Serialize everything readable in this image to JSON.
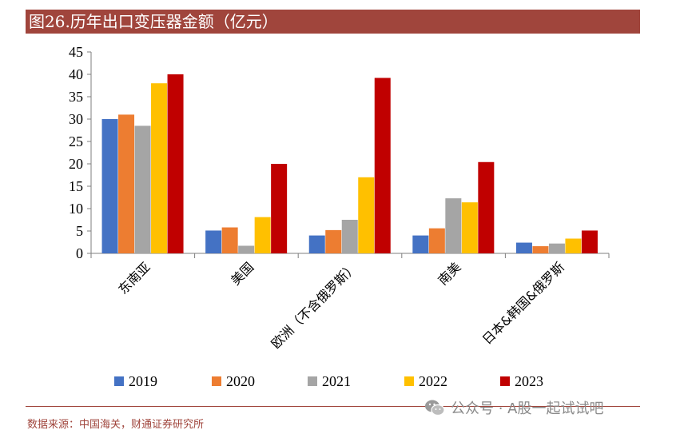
{
  "title": "图26.历年出口变压器金额（亿元）",
  "source": "数据来源：中国海关，财通证券研究所",
  "watermark": "公众号 · A股一起试试吧",
  "chart_data": {
    "type": "bar",
    "categories": [
      "东南亚",
      "美国",
      "欧洲（不含俄罗斯）",
      "南美",
      "日本&韩国&俄罗斯"
    ],
    "series": [
      {
        "name": "2019",
        "color": "#4472c4",
        "values": [
          30.0,
          5.1,
          4.0,
          4.0,
          2.4
        ]
      },
      {
        "name": "2020",
        "color": "#ed7d31",
        "values": [
          31.0,
          5.8,
          5.2,
          5.6,
          1.6
        ]
      },
      {
        "name": "2021",
        "color": "#a5a5a5",
        "values": [
          28.5,
          1.7,
          7.5,
          12.3,
          2.2
        ]
      },
      {
        "name": "2022",
        "color": "#ffc000",
        "values": [
          38.0,
          8.1,
          17.0,
          11.4,
          3.3
        ]
      },
      {
        "name": "2023",
        "color": "#c00000",
        "values": [
          40.0,
          20.0,
          39.2,
          20.4,
          5.1
        ]
      }
    ],
    "y_ticks": [
      "0",
      "5",
      "10",
      "15",
      "20",
      "25",
      "30",
      "35",
      "40",
      "45"
    ],
    "ylim": [
      0,
      45
    ],
    "grid": false,
    "legend_position": "bottom"
  }
}
